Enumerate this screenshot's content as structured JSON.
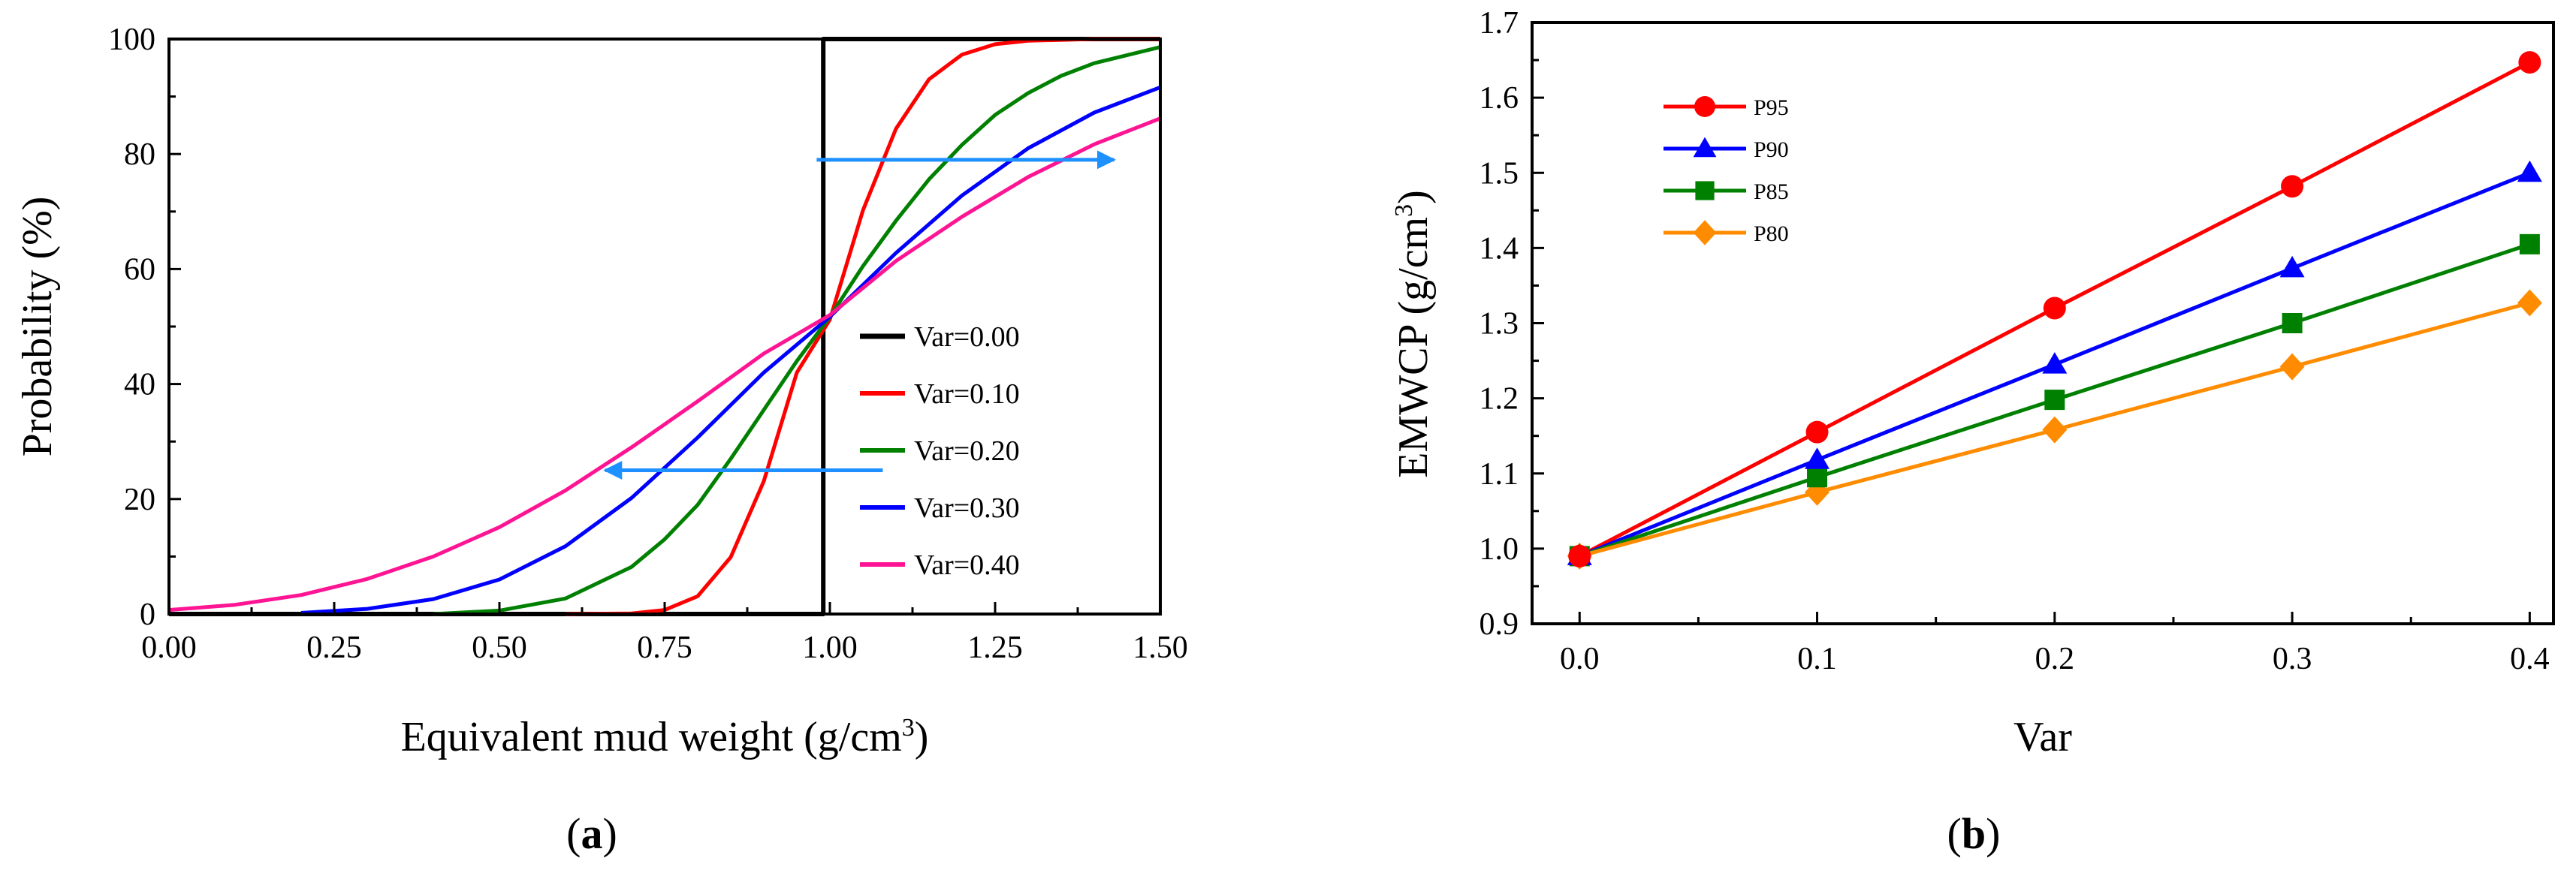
{
  "chart_data": [
    {
      "id": "a",
      "type": "line",
      "panel_label": "(a)",
      "panel_letter": "a",
      "xlabel": "Equivalent mud weight (g/cm",
      "xlabel_sup": "3",
      "xlabel_close": ")",
      "ylabel": "Probability (%)",
      "xlim": [
        0,
        1.5
      ],
      "ylim": [
        0,
        100
      ],
      "xticks": [
        0.0,
        0.25,
        0.5,
        0.75,
        1.0,
        1.25,
        1.5
      ],
      "xtick_labels": [
        "0.00",
        "0.25",
        "0.50",
        "0.75",
        "1.00",
        "1.25",
        "1.50"
      ],
      "yticks": [
        0,
        20,
        40,
        60,
        80,
        100
      ],
      "ytick_labels": [
        "0",
        "20",
        "40",
        "60",
        "80",
        "100"
      ],
      "legend_position": "lower-right",
      "series": [
        {
          "name": "Var=0.00",
          "color": "#000000",
          "x": [
            0,
            0.98,
            0.99,
            0.99,
            1.0,
            1.5
          ],
          "y": [
            0,
            0,
            0,
            100,
            100,
            100
          ]
        },
        {
          "name": "Var=0.10",
          "color": "#ff0000",
          "x": [
            0.6,
            0.7,
            0.75,
            0.8,
            0.85,
            0.9,
            0.95,
            1.0,
            1.05,
            1.1,
            1.15,
            1.2,
            1.25,
            1.3,
            1.4,
            1.5
          ],
          "y": [
            0.0,
            0.1,
            0.7,
            3.1,
            9.9,
            23.1,
            42.0,
            51.2,
            70.2,
            84.4,
            93.0,
            97.3,
            99.1,
            99.7,
            100.0,
            100.0
          ]
        },
        {
          "name": "Var=0.20",
          "color": "#008000",
          "x": [
            0.4,
            0.5,
            0.6,
            0.7,
            0.75,
            0.8,
            0.85,
            0.9,
            0.95,
            1.0,
            1.05,
            1.1,
            1.15,
            1.2,
            1.25,
            1.3,
            1.35,
            1.4,
            1.5
          ],
          "y": [
            0.0,
            0.6,
            2.7,
            8.2,
            13.0,
            19.0,
            27.0,
            35.5,
            44.0,
            51.7,
            60.5,
            68.4,
            75.6,
            81.6,
            86.8,
            90.6,
            93.6,
            95.8,
            98.6
          ]
        },
        {
          "name": "Var=0.30",
          "color": "#0000ff",
          "x": [
            0.2,
            0.3,
            0.4,
            0.5,
            0.6,
            0.7,
            0.8,
            0.9,
            1.0,
            1.1,
            1.2,
            1.3,
            1.4,
            1.5
          ],
          "y": [
            0.2,
            0.9,
            2.6,
            6.0,
            11.8,
            20.2,
            30.7,
            42.0,
            51.7,
            62.8,
            72.8,
            81.0,
            87.2,
            91.6
          ]
        },
        {
          "name": "Var=0.40",
          "color": "#ff1493",
          "x": [
            0.0,
            0.1,
            0.2,
            0.3,
            0.4,
            0.5,
            0.6,
            0.7,
            0.8,
            0.9,
            1.0,
            1.1,
            1.2,
            1.3,
            1.4,
            1.5
          ],
          "y": [
            0.7,
            1.6,
            3.3,
            6.1,
            10.0,
            15.1,
            21.5,
            29.0,
            37.0,
            45.3,
            52.0,
            61.4,
            69.1,
            76.0,
            81.7,
            86.2
          ]
        }
      ],
      "annotations": [
        {
          "type": "arrow",
          "direction": "right",
          "color": "#1e90ff",
          "x_start": 0.98,
          "x_end": 1.43,
          "y": 79
        },
        {
          "type": "arrow",
          "direction": "left",
          "color": "#1e90ff",
          "x_start": 1.08,
          "x_end": 0.66,
          "y": 25
        }
      ]
    },
    {
      "id": "b",
      "type": "line",
      "panel_label": "(b)",
      "panel_letter": "b",
      "xlabel": "Var",
      "ylabel": "EMWCP (g/cm",
      "ylabel_sup": "3",
      "ylabel_close": ")",
      "xlim": [
        -0.02,
        0.41
      ],
      "ylim": [
        0.9,
        1.7
      ],
      "xticks": [
        0.0,
        0.1,
        0.2,
        0.3,
        0.4
      ],
      "xtick_labels": [
        "0.0",
        "0.1",
        "0.2",
        "0.3",
        "0.4"
      ],
      "yticks": [
        0.9,
        1.0,
        1.1,
        1.2,
        1.3,
        1.4,
        1.5,
        1.6,
        1.7
      ],
      "ytick_labels": [
        "0.9",
        "1.0",
        "1.1",
        "1.2",
        "1.3",
        "1.4",
        "1.5",
        "1.6",
        "1.7"
      ],
      "legend_position": "top-left",
      "x": [
        0.0,
        0.1,
        0.2,
        0.3,
        0.4
      ],
      "series": [
        {
          "name": "P95",
          "marker": "circle",
          "color": "#ff0000",
          "values": [
            0.99,
            1.155,
            1.32,
            1.482,
            1.647
          ]
        },
        {
          "name": "P90",
          "marker": "triangle",
          "color": "#0000ff",
          "values": [
            0.99,
            1.118,
            1.245,
            1.373,
            1.5
          ]
        },
        {
          "name": "P85",
          "marker": "square",
          "color": "#008000",
          "values": [
            0.99,
            1.095,
            1.198,
            1.3,
            1.405
          ]
        },
        {
          "name": "P80",
          "marker": "diamond",
          "color": "#ff8c00",
          "values": [
            0.99,
            1.075,
            1.158,
            1.242,
            1.327
          ]
        }
      ]
    }
  ]
}
